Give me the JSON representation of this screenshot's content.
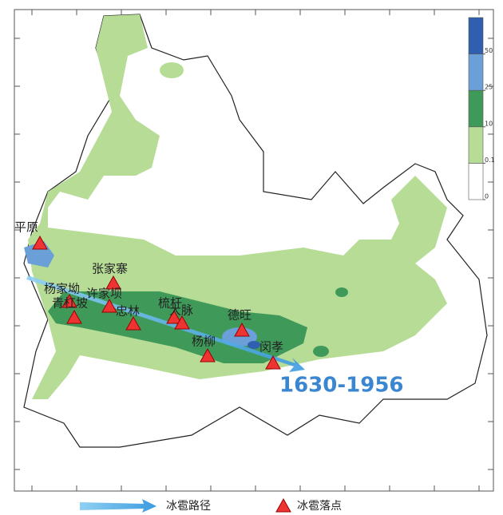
{
  "map": {
    "places": [
      "平原",
      "张家寨",
      "杨家坳",
      "许家坝",
      "青杠坡",
      "忠林",
      "梳杆",
      "大脉",
      "德旺",
      "杨柳",
      "闵孝"
    ],
    "period": "1630-1956",
    "colorbar": {
      "ticks": [
        0,
        0.1,
        10,
        25,
        50
      ],
      "colors": [
        "#ffffff",
        "#b6dc96",
        "#3f9a5a",
        "#6a9fd8",
        "#2f5fae",
        "#2f5fae"
      ]
    },
    "legend": {
      "path": "冰雹路径",
      "point": "冰雹落点"
    }
  }
}
